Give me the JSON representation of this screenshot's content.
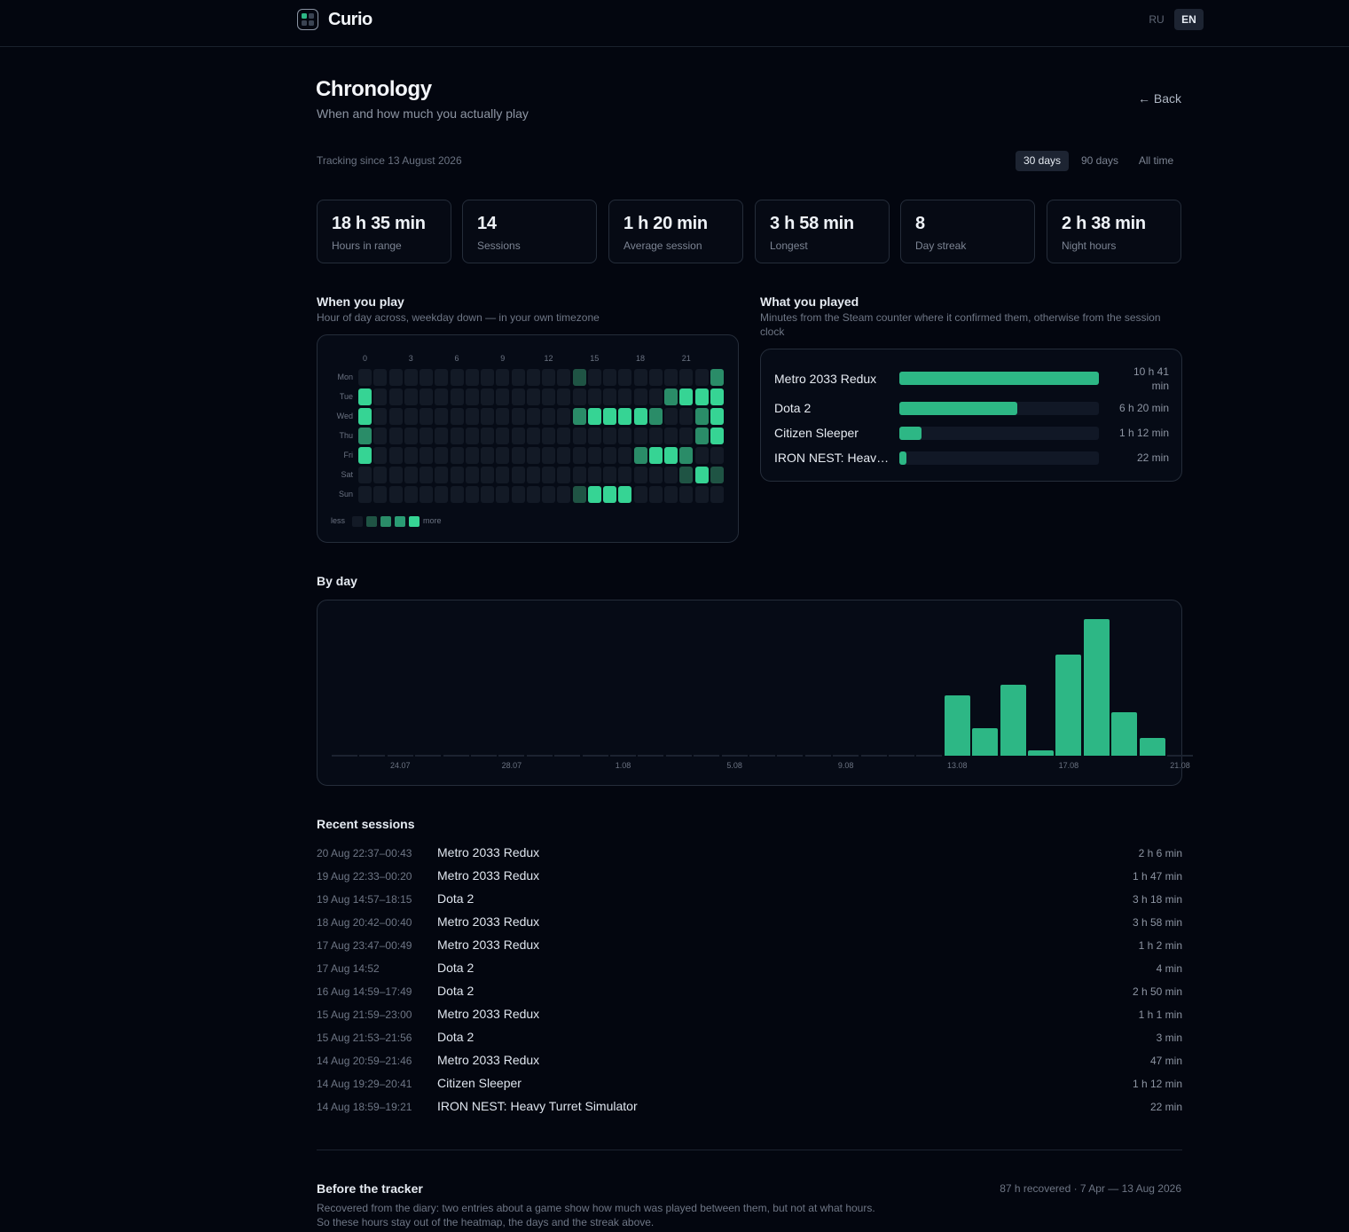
{
  "app": {
    "name": "Curio",
    "langs": [
      "RU",
      "EN"
    ],
    "active_lang": "EN"
  },
  "page": {
    "title": "Chronology",
    "subtitle": "When and how much you actually play",
    "back_label": "← Back",
    "tracking": "Tracking since 13 August 2026",
    "ranges": [
      "30 days",
      "90 days",
      "All time"
    ],
    "active_range": "30 days"
  },
  "stats": [
    {
      "value": "18 h 35 min",
      "label": "Hours in range"
    },
    {
      "value": "14",
      "label": "Sessions"
    },
    {
      "value": "1 h 20 min",
      "label": "Average session"
    },
    {
      "value": "3 h 58 min",
      "label": "Longest"
    },
    {
      "value": "8",
      "label": "Day streak"
    },
    {
      "value": "2 h 38 min",
      "label": "Night hours"
    }
  ],
  "heatmap": {
    "title": "When you play",
    "subtitle": "Hour of day across, weekday down — in your own timezone",
    "hour_labels": [
      "0",
      "3",
      "6",
      "9",
      "12",
      "15",
      "18",
      "21"
    ],
    "days": [
      "Mon",
      "Tue",
      "Wed",
      "Thu",
      "Fri",
      "Sat",
      "Sun"
    ],
    "colors": [
      "#131a26",
      "#1f5444",
      "#2a8c68",
      "#36d494"
    ],
    "cells": [
      [
        0,
        0,
        0,
        0,
        0,
        0,
        0,
        0,
        0,
        0,
        0,
        0,
        0,
        0,
        1,
        0,
        0,
        0,
        0,
        0,
        0,
        0,
        0,
        2
      ],
      [
        3,
        0,
        0,
        0,
        0,
        0,
        0,
        0,
        0,
        0,
        0,
        0,
        0,
        0,
        0,
        0,
        0,
        0,
        0,
        0,
        2,
        3,
        3,
        3
      ],
      [
        3,
        0,
        0,
        0,
        0,
        0,
        0,
        0,
        0,
        0,
        0,
        0,
        0,
        0,
        2,
        3,
        3,
        3,
        3,
        2,
        0,
        0,
        2,
        3
      ],
      [
        2,
        0,
        0,
        0,
        0,
        0,
        0,
        0,
        0,
        0,
        0,
        0,
        0,
        0,
        0,
        0,
        0,
        0,
        0,
        0,
        0,
        0,
        2,
        3
      ],
      [
        3,
        0,
        0,
        0,
        0,
        0,
        0,
        0,
        0,
        0,
        0,
        0,
        0,
        0,
        0,
        0,
        0,
        0,
        2,
        3,
        3,
        2,
        0,
        0
      ],
      [
        0,
        0,
        0,
        0,
        0,
        0,
        0,
        0,
        0,
        0,
        0,
        0,
        0,
        0,
        0,
        0,
        0,
        0,
        0,
        0,
        0,
        1,
        3,
        1
      ],
      [
        0,
        0,
        0,
        0,
        0,
        0,
        0,
        0,
        0,
        0,
        0,
        0,
        0,
        0,
        1,
        3,
        3,
        3,
        0,
        0,
        0,
        0,
        0,
        0
      ]
    ],
    "legend_less": "less",
    "legend_more": "more"
  },
  "played": {
    "title": "What you played",
    "subtitle": "Minutes from the Steam counter where it confirmed them, otherwise from the session clock",
    "games": [
      {
        "name": "Metro 2033 Redux",
        "time": "10 h 41 min",
        "fraction": 1.0
      },
      {
        "name": "Dota 2",
        "time": "6 h 20 min",
        "fraction": 0.59
      },
      {
        "name": "Citizen Sleeper",
        "time": "1 h 12 min",
        "fraction": 0.11
      },
      {
        "name": "IRON NEST: Heav…",
        "time": "22 min",
        "fraction": 0.034
      }
    ]
  },
  "by_day": {
    "title": "By day"
  },
  "chart_data": {
    "type": "bar",
    "title": "By day",
    "categories": [
      "22.07",
      "23.07",
      "24.07",
      "25.07",
      "26.07",
      "27.07",
      "28.07",
      "29.07",
      "30.07",
      "31.07",
      "1.08",
      "2.08",
      "3.08",
      "4.08",
      "5.08",
      "6.08",
      "7.08",
      "8.08",
      "9.08",
      "10.08",
      "11.08",
      "12.08",
      "13.08",
      "14.08",
      "15.08",
      "16.08",
      "17.08",
      "18.08",
      "19.08",
      "20.08",
      "21.08"
    ],
    "tick_labels": [
      "24.07",
      "28.07",
      "1.08",
      "5.08",
      "9.08",
      "13.08",
      "17.08",
      "21.08"
    ],
    "values": [
      0,
      0,
      0,
      0,
      0,
      0,
      0,
      0,
      0,
      0,
      0,
      0,
      0,
      0,
      0,
      0,
      0,
      0,
      0,
      0,
      0,
      0,
      2.2,
      1.0,
      2.6,
      0.2,
      3.7,
      5.0,
      1.6,
      0.65,
      0
    ],
    "ylim": [
      0,
      5.2
    ],
    "xlabel": "",
    "ylabel": ""
  },
  "sessions": {
    "title": "Recent sessions",
    "rows": [
      {
        "time": "20 Aug 22:37–00:43",
        "game": "Metro 2033 Redux",
        "duration": "2 h 6 min"
      },
      {
        "time": "19 Aug 22:33–00:20",
        "game": "Metro 2033 Redux",
        "duration": "1 h 47 min"
      },
      {
        "time": "19 Aug 14:57–18:15",
        "game": "Dota 2",
        "duration": "3 h 18 min"
      },
      {
        "time": "18 Aug 20:42–00:40",
        "game": "Metro 2033 Redux",
        "duration": "3 h 58 min"
      },
      {
        "time": "17 Aug 23:47–00:49",
        "game": "Metro 2033 Redux",
        "duration": "1 h 2 min"
      },
      {
        "time": "17 Aug 14:52",
        "game": "Dota 2",
        "duration": "4 min"
      },
      {
        "time": "16 Aug 14:59–17:49",
        "game": "Dota 2",
        "duration": "2 h 50 min"
      },
      {
        "time": "15 Aug 21:59–23:00",
        "game": "Metro 2033 Redux",
        "duration": "1 h 1 min"
      },
      {
        "time": "15 Aug 21:53–21:56",
        "game": "Dota 2",
        "duration": "3 min"
      },
      {
        "time": "14 Aug 20:59–21:46",
        "game": "Metro 2033 Redux",
        "duration": "47 min"
      },
      {
        "time": "14 Aug 19:29–20:41",
        "game": "Citizen Sleeper",
        "duration": "1 h 12 min"
      },
      {
        "time": "14 Aug 18:59–19:21",
        "game": "IRON NEST: Heavy Turret Simulator",
        "duration": "22 min"
      }
    ]
  },
  "before": {
    "title": "Before the tracker",
    "meta": "87 h recovered · 7 Apr — 13 Aug 2026",
    "text1": "Recovered from the diary: two entries about a game show how much was played between them, but not at what hours.",
    "text2": "So these hours stay out of the heatmap, the days and the streak above."
  }
}
